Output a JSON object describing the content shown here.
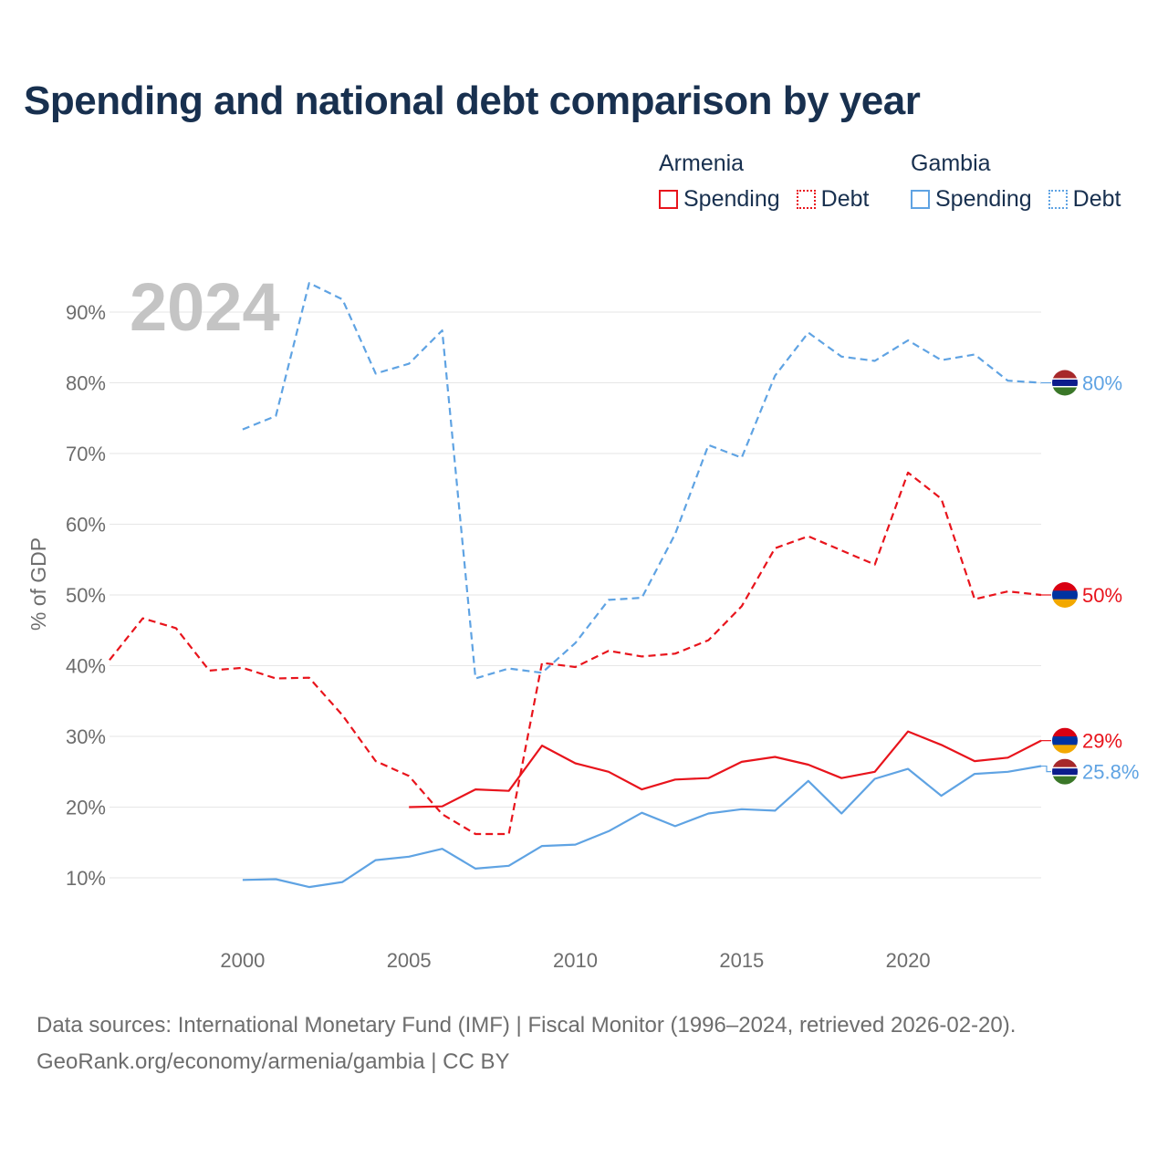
{
  "title": "Spending and national debt comparison by year",
  "legend": {
    "groups": [
      {
        "country": "Armenia",
        "color": "#e8141c",
        "items": [
          {
            "label": "Spending",
            "style": "solid"
          },
          {
            "label": "Debt",
            "style": "dotted"
          }
        ]
      },
      {
        "country": "Gambia",
        "color": "#5fa3e3",
        "items": [
          {
            "label": "Spending",
            "style": "solid"
          },
          {
            "label": "Debt",
            "style": "dotted"
          }
        ]
      }
    ]
  },
  "year_label": "2024",
  "chart_data": {
    "type": "line",
    "ylabel": "% of GDP",
    "xlim": [
      1996,
      2024
    ],
    "ylim": [
      0,
      96
    ],
    "x_ticks": [
      2000,
      2005,
      2010,
      2015,
      2020
    ],
    "y_ticks": [
      10,
      20,
      30,
      40,
      50,
      60,
      70,
      80,
      90
    ],
    "y_tick_labels": [
      "10%",
      "20%",
      "30%",
      "40%",
      "50%",
      "60%",
      "70%",
      "80%",
      "90%"
    ],
    "series": [
      {
        "name": "Gambia Debt",
        "country": "Gambia",
        "measure": "Debt",
        "color": "#5fa3e3",
        "dashed": true,
        "end_label": "80%",
        "x": [
          2000,
          2001,
          2002,
          2003,
          2004,
          2005,
          2006,
          2007,
          2008,
          2009,
          2010,
          2011,
          2012,
          2013,
          2014,
          2015,
          2016,
          2017,
          2018,
          2019,
          2020,
          2021,
          2022,
          2023,
          2024
        ],
        "values": [
          73.4,
          75.3,
          94.1,
          91.8,
          81.3,
          82.7,
          87.4,
          38.2,
          39.6,
          39.0,
          43.2,
          49.3,
          49.6,
          58.6,
          71.2,
          69.4,
          81.0,
          87.1,
          83.7,
          83.1,
          86.0,
          83.2,
          84.0,
          80.3,
          80.0
        ]
      },
      {
        "name": "Armenia Debt",
        "country": "Armenia",
        "measure": "Debt",
        "color": "#e8141c",
        "dashed": true,
        "end_label": "50%",
        "x": [
          1996,
          1997,
          1998,
          1999,
          2000,
          2001,
          2002,
          2003,
          2004,
          2005,
          2006,
          2007,
          2008,
          2009,
          2010,
          2011,
          2012,
          2013,
          2014,
          2015,
          2016,
          2017,
          2018,
          2019,
          2020,
          2021,
          2022,
          2023,
          2024
        ],
        "values": [
          40.8,
          46.7,
          45.3,
          39.3,
          39.7,
          38.2,
          38.3,
          33.0,
          26.5,
          24.4,
          19.0,
          16.2,
          16.2,
          40.4,
          39.8,
          42.1,
          41.3,
          41.7,
          43.6,
          48.4,
          56.6,
          58.3,
          56.3,
          54.3,
          67.3,
          63.6,
          49.4,
          50.5,
          50.0
        ]
      },
      {
        "name": "Armenia Spending",
        "country": "Armenia",
        "measure": "Spending",
        "color": "#e8141c",
        "dashed": false,
        "end_label": "29%",
        "x": [
          2005,
          2006,
          2007,
          2008,
          2009,
          2010,
          2011,
          2012,
          2013,
          2014,
          2015,
          2016,
          2017,
          2018,
          2019,
          2020,
          2021,
          2022,
          2023,
          2024
        ],
        "values": [
          20.0,
          20.1,
          22.5,
          22.3,
          28.7,
          26.2,
          25.0,
          22.5,
          23.9,
          24.1,
          26.4,
          27.1,
          26.0,
          24.1,
          25.0,
          30.7,
          28.8,
          26.5,
          27.0,
          29.4
        ]
      },
      {
        "name": "Gambia Spending",
        "country": "Gambia",
        "measure": "Spending",
        "color": "#5fa3e3",
        "dashed": false,
        "end_label": "25.8%",
        "x": [
          2000,
          2001,
          2002,
          2003,
          2004,
          2005,
          2006,
          2007,
          2008,
          2009,
          2010,
          2011,
          2012,
          2013,
          2014,
          2015,
          2016,
          2017,
          2018,
          2019,
          2020,
          2021,
          2022,
          2023,
          2024
        ],
        "values": [
          9.7,
          9.8,
          8.7,
          9.4,
          12.5,
          13.0,
          14.1,
          11.3,
          11.7,
          14.5,
          14.7,
          16.6,
          19.2,
          17.3,
          19.1,
          19.7,
          19.5,
          23.7,
          19.1,
          24.0,
          25.4,
          21.6,
          24.7,
          25.0,
          25.8
        ]
      }
    ]
  },
  "flags": {
    "Armenia": [
      "#d90012",
      "#0033a0",
      "#f2a800"
    ],
    "Gambia": [
      "#a7282a",
      "#ffffff",
      "#0c1c8c",
      "#ffffff",
      "#3a7728"
    ]
  },
  "footer": {
    "sources": "Data sources: International Monetary Fund (IMF) | Fiscal Monitor (1996–2024, retrieved 2026-02-20).",
    "credit": "GeoRank.org/economy/armenia/gambia | CC BY"
  }
}
